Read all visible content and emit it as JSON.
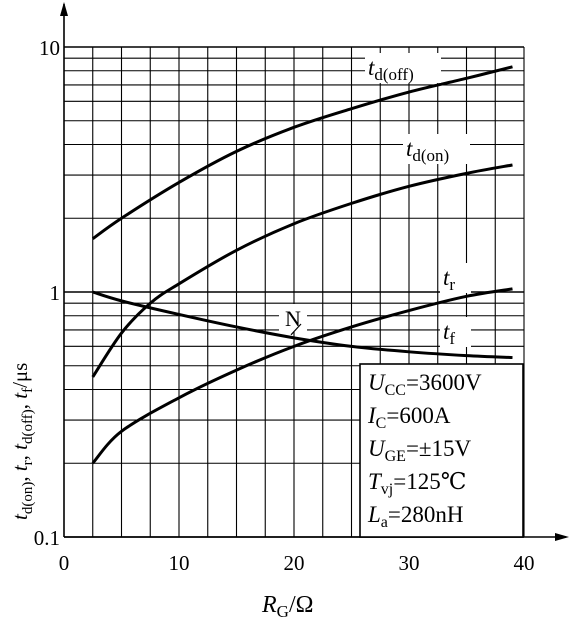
{
  "chart_data": {
    "type": "line",
    "title": "",
    "xlabel": {
      "main": "R",
      "sub": "G",
      "unit": "/Ω"
    },
    "ylabel": [
      {
        "main": "t",
        "sub": "d(on)"
      },
      {
        "sep": ", "
      },
      {
        "main": "t",
        "sub": "r"
      },
      {
        "sep": ", "
      },
      {
        "main": "t",
        "sub": "d(off)"
      },
      {
        "sep": ", "
      },
      {
        "main": "t",
        "sub": "f"
      },
      {
        "sep": "/μs"
      }
    ],
    "x_scale": "linear",
    "y_scale": "log",
    "xlim": [
      0,
      40
    ],
    "ylim": [
      0.1,
      10
    ],
    "x_ticks": [
      0,
      10,
      20,
      30,
      40
    ],
    "x_tick_labels": [
      "0",
      "10",
      "20",
      "30",
      "40"
    ],
    "y_tick_labels": [
      {
        "value": 0.1,
        "label": "0.1"
      },
      {
        "value": 1,
        "label": "1"
      },
      {
        "value": 10,
        "label": "10"
      }
    ],
    "grid": true,
    "x_grid_step": 2.5,
    "series": [
      {
        "name": "t",
        "sub": "d(off)",
        "x": [
          2.5,
          5,
          10,
          15,
          20,
          25,
          30,
          35,
          39
        ],
        "y": [
          1.65,
          2.0,
          2.8,
          3.75,
          4.7,
          5.6,
          6.55,
          7.45,
          8.3
        ]
      },
      {
        "name": "t",
        "sub": "d(on)",
        "x": [
          2.5,
          5,
          7.5,
          10,
          15,
          20,
          25,
          30,
          35,
          39
        ],
        "y": [
          0.45,
          0.68,
          0.9,
          1.08,
          1.48,
          1.9,
          2.3,
          2.7,
          3.05,
          3.3
        ]
      },
      {
        "name": "t",
        "sub": "r",
        "x": [
          2.5,
          5,
          10,
          15,
          20,
          25,
          30,
          35,
          39
        ],
        "y": [
          0.2,
          0.27,
          0.37,
          0.48,
          0.6,
          0.72,
          0.84,
          0.96,
          1.03
        ]
      },
      {
        "name": "t",
        "sub": "f",
        "x": [
          2.5,
          5,
          10,
          15,
          20,
          25,
          30,
          35,
          39
        ],
        "y": [
          1.0,
          0.92,
          0.81,
          0.72,
          0.65,
          0.6,
          0.57,
          0.55,
          0.54
        ]
      }
    ],
    "annotations": [
      {
        "text": "N",
        "x": 20,
        "y": 0.65
      }
    ],
    "conditions": [
      {
        "main": "U",
        "sub": "CC",
        "value": "=3600V"
      },
      {
        "main": "I",
        "sub": "C",
        "value": "=600A"
      },
      {
        "main": "U",
        "sub": "GE",
        "value": "=±15V"
      },
      {
        "main": "T",
        "sub": "vj",
        "value": "=125℃"
      },
      {
        "main": "L",
        "sub": "a",
        "value": "=280nH"
      }
    ]
  }
}
